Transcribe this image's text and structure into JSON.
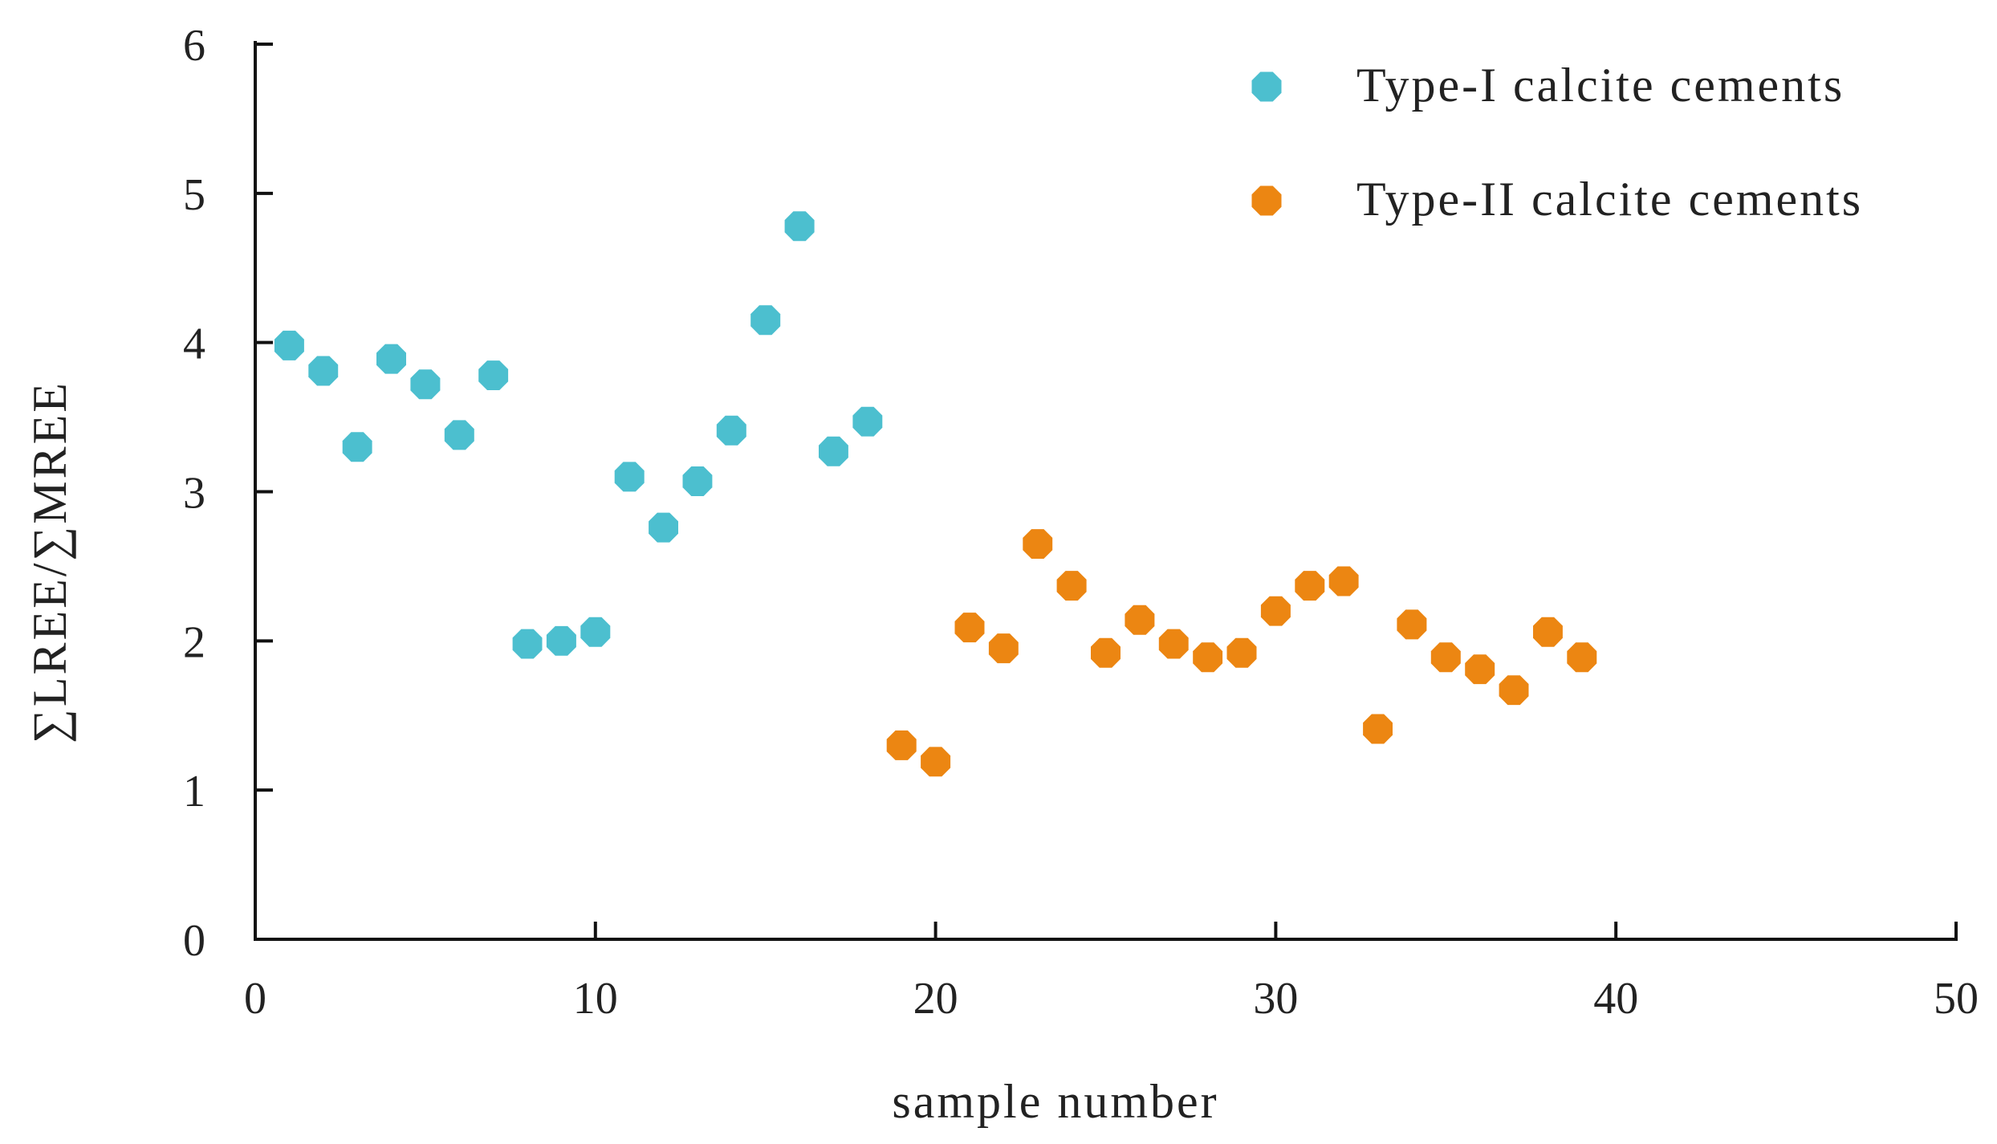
{
  "chart_data": {
    "type": "scatter",
    "title": "",
    "xlabel": "sample number",
    "ylabel": "∑LREE/∑MREE",
    "xlim": [
      0,
      50
    ],
    "ylim": [
      0,
      6
    ],
    "xticks": [
      0,
      10,
      20,
      30,
      40,
      50
    ],
    "yticks": [
      0,
      1,
      2,
      3,
      4,
      5,
      6
    ],
    "grid": false,
    "legend_position": "top-right",
    "series": [
      {
        "name": "Type-I calcite cements",
        "color": "#4cbfcf",
        "x": [
          1,
          2,
          3,
          4,
          5,
          6,
          7,
          8,
          9,
          10,
          11,
          12,
          13,
          14,
          15,
          16,
          17,
          18
        ],
        "y": [
          3.98,
          3.81,
          3.3,
          3.89,
          3.72,
          3.38,
          3.78,
          1.98,
          2.0,
          2.06,
          3.1,
          2.76,
          3.07,
          3.41,
          4.15,
          4.78,
          3.27,
          3.47
        ]
      },
      {
        "name": "Type-II calcite cements",
        "color": "#ec8612",
        "x": [
          19,
          20,
          21,
          22,
          23,
          24,
          25,
          26,
          27,
          28,
          29,
          30,
          31,
          32,
          33,
          34,
          35,
          36,
          37,
          38,
          39
        ],
        "y": [
          1.3,
          1.19,
          2.09,
          1.95,
          2.65,
          2.37,
          1.92,
          2.14,
          1.98,
          1.89,
          1.92,
          2.2,
          2.37,
          2.4,
          1.41,
          2.11,
          1.89,
          1.81,
          1.67,
          2.06,
          1.89
        ]
      }
    ]
  }
}
